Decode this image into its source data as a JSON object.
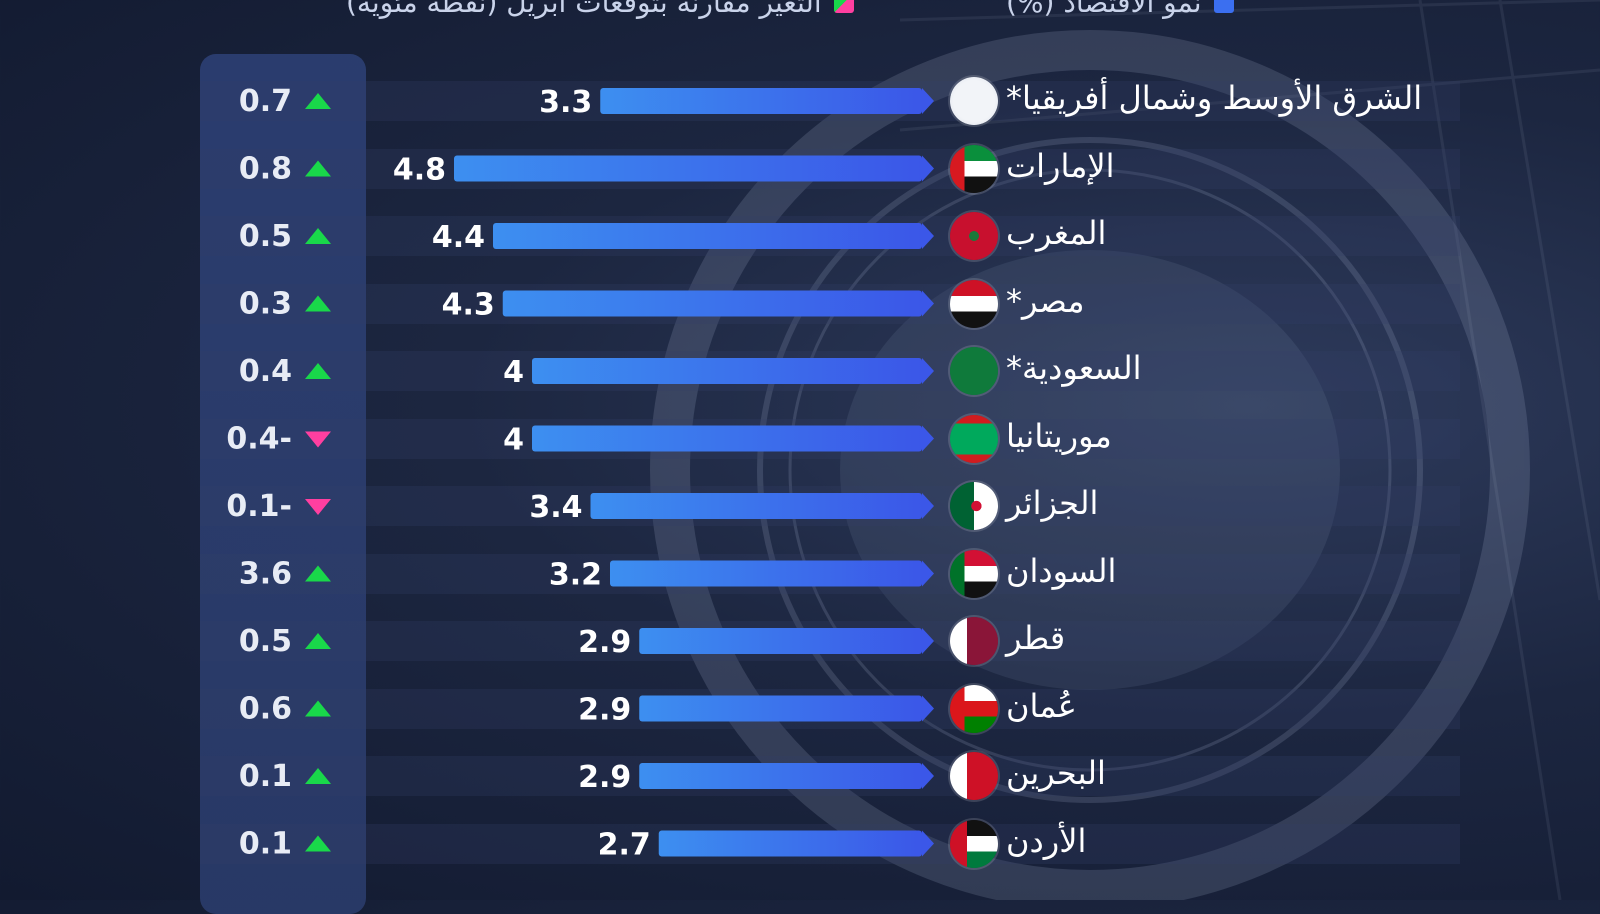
{
  "legend": {
    "growth_label": "نمو الاقتصاد (%)",
    "change_label": "التغير مقارنة بتوقعات أبريل (نقطة مئوية)"
  },
  "colors": {
    "bar_start": "#3d8ff0",
    "bar_end": "#3b57e8",
    "up": "#19d84a",
    "down": "#ff3fa0",
    "panel": "#2c3f73"
  },
  "chart_data": {
    "type": "bar",
    "orientation": "horizontal",
    "categories": [
      "الشرق الأوسط وشمال أفريقيا*",
      "الإمارات",
      "المغرب",
      "مصر*",
      "السعودية*",
      "موريتانيا",
      "الجزائر",
      "السودان",
      "قطر",
      "عُمان",
      "البحرين",
      "الأردن"
    ],
    "series": [
      {
        "name": "نمو الاقتصاد (%)",
        "values": [
          3.3,
          4.8,
          4.4,
          4.3,
          4,
          4,
          3.4,
          3.2,
          2.9,
          2.9,
          2.9,
          2.7
        ]
      },
      {
        "name": "التغير مقارنة بتوقعات أبريل (نقطة مئوية)",
        "values": [
          0.7,
          0.8,
          0.5,
          0.3,
          0.4,
          -0.4,
          -0.1,
          3.6,
          0.5,
          0.6,
          0.1,
          0.1
        ]
      }
    ],
    "value_labels": [
      "3.3",
      "4.8",
      "4.4",
      "4.3",
      "4",
      "4",
      "3.4",
      "3.2",
      "2.9",
      "2.9",
      "2.9",
      "2.7"
    ],
    "change_labels": [
      "0.7",
      "0.8",
      "0.5",
      "0.3",
      "0.4",
      "0.4-",
      "0.1-",
      "3.6",
      "0.5",
      "0.6",
      "0.1",
      "0.1"
    ],
    "flags": [
      "mena-map-icon",
      "uae-flag-icon",
      "morocco-flag-icon",
      "egypt-flag-icon",
      "saudi-flag-icon",
      "mauritania-flag-icon",
      "algeria-flag-icon",
      "sudan-flag-icon",
      "qatar-flag-icon",
      "oman-flag-icon",
      "bahrain-flag-icon",
      "jordan-flag-icon"
    ]
  }
}
